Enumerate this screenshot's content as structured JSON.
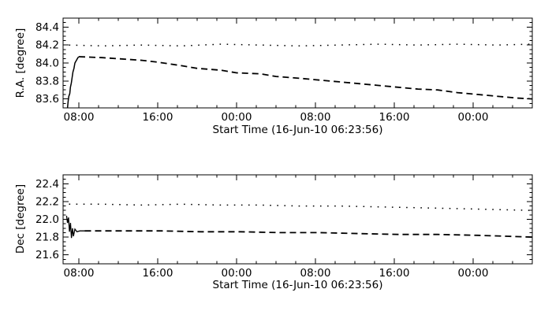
{
  "figure": {
    "background": "#ffffff",
    "foreground": "#000000",
    "description": "Two-panel pointing plot: R.A. and Dec versus time"
  },
  "chart_data": [
    {
      "type": "line",
      "title": "",
      "ylabel": "R.A. [degree]",
      "xlabel": "Start Time (16-Jun-10 06:23:56)",
      "ylim": [
        83.5,
        84.5
      ],
      "ytick_values": [
        83.6,
        83.8,
        84.0,
        84.2,
        84.4
      ],
      "ytick_labels": [
        "83.6",
        "83.8",
        "84.0",
        "84.2",
        "84.4"
      ],
      "y_minor_step": 0.05,
      "xlim_hours": [
        0,
        47.6
      ],
      "xtick_hours": [
        1.601,
        9.601,
        17.601,
        25.601,
        33.601,
        41.601
      ],
      "xtick_labels": [
        "08:00",
        "16:00",
        "00:00",
        "08:00",
        "16:00",
        "00:00"
      ],
      "x_minor_step_hours": 2,
      "grid": false,
      "legend": null,
      "series": [
        {
          "name": "ra-rise-solid",
          "style": "solid",
          "width": 1.5,
          "points": [
            [
              0.45,
              83.5
            ],
            [
              0.52,
              83.58
            ],
            [
              0.58,
              83.63
            ],
            [
              0.68,
              83.66
            ],
            [
              0.74,
              83.73
            ],
            [
              0.84,
              83.78
            ],
            [
              0.92,
              83.84
            ],
            [
              1.0,
              83.9
            ],
            [
              1.1,
              83.94
            ],
            [
              1.2,
              84.0
            ],
            [
              1.35,
              84.03
            ],
            [
              1.5,
              84.06
            ],
            [
              1.6,
              84.07
            ]
          ]
        },
        {
          "name": "ra-measured-dashed",
          "style": "dashed",
          "width": 1.8,
          "points": [
            [
              1.6,
              84.07
            ],
            [
              4.0,
              84.06
            ],
            [
              8.0,
              84.03
            ],
            [
              9.6,
              84.01
            ],
            [
              12.0,
              83.97
            ],
            [
              13.6,
              83.94
            ],
            [
              16.0,
              83.92
            ],
            [
              17.6,
              83.89
            ],
            [
              20.0,
              83.88
            ],
            [
              21.6,
              83.85
            ],
            [
              24.0,
              83.83
            ],
            [
              26.0,
              83.81
            ],
            [
              28.0,
              83.79
            ],
            [
              30.0,
              83.77
            ],
            [
              32.0,
              83.75
            ],
            [
              34.0,
              83.73
            ],
            [
              36.0,
              83.71
            ],
            [
              38.0,
              83.7
            ],
            [
              40.0,
              83.67
            ],
            [
              42.0,
              83.65
            ],
            [
              44.0,
              83.63
            ],
            [
              46.0,
              83.61
            ],
            [
              47.6,
              83.6
            ]
          ]
        },
        {
          "name": "ra-reference-dotted",
          "style": "dotted",
          "width": 1.5,
          "points": [
            [
              0.6,
              84.2
            ],
            [
              4.0,
              84.19
            ],
            [
              8.0,
              84.2
            ],
            [
              12.0,
              84.19
            ],
            [
              16.0,
              84.21
            ],
            [
              20.0,
              84.2
            ],
            [
              24.0,
              84.19
            ],
            [
              28.0,
              84.2
            ],
            [
              32.0,
              84.21
            ],
            [
              36.0,
              84.2
            ],
            [
              40.0,
              84.21
            ],
            [
              44.0,
              84.2
            ],
            [
              47.4,
              84.21
            ]
          ]
        }
      ]
    },
    {
      "type": "line",
      "title": "",
      "ylabel": "Dec [degree]",
      "xlabel": "Start Time (16-Jun-10 06:23:56)",
      "ylim": [
        21.5,
        22.5
      ],
      "ytick_values": [
        21.6,
        21.8,
        22.0,
        22.2,
        22.4
      ],
      "ytick_labels": [
        "21.6",
        "21.8",
        "22.0",
        "22.2",
        "22.4"
      ],
      "y_minor_step": 0.05,
      "xlim_hours": [
        0,
        47.6
      ],
      "xtick_hours": [
        1.601,
        9.601,
        17.601,
        25.601,
        33.601,
        41.601
      ],
      "xtick_labels": [
        "08:00",
        "16:00",
        "00:00",
        "08:00",
        "16:00",
        "00:00"
      ],
      "x_minor_step_hours": 2,
      "grid": false,
      "legend": null,
      "series": [
        {
          "name": "dec-settle-solid",
          "style": "solid",
          "width": 1.3,
          "points": [
            [
              0.35,
              22.04
            ],
            [
              0.45,
              21.96
            ],
            [
              0.55,
              22.02
            ],
            [
              0.65,
              21.86
            ],
            [
              0.75,
              21.96
            ],
            [
              0.85,
              21.79
            ],
            [
              0.95,
              21.9
            ],
            [
              1.05,
              21.81
            ],
            [
              1.2,
              21.89
            ],
            [
              1.4,
              21.86
            ],
            [
              1.7,
              21.87
            ],
            [
              2.2,
              21.87
            ]
          ]
        },
        {
          "name": "dec-measured-dashed",
          "style": "dashed",
          "width": 1.8,
          "points": [
            [
              2.2,
              21.87
            ],
            [
              6.0,
              21.87
            ],
            [
              10.0,
              21.87
            ],
            [
              14.0,
              21.86
            ],
            [
              18.0,
              21.86
            ],
            [
              22.0,
              21.85
            ],
            [
              26.0,
              21.85
            ],
            [
              30.0,
              21.84
            ],
            [
              34.0,
              21.83
            ],
            [
              38.0,
              21.83
            ],
            [
              42.0,
              21.82
            ],
            [
              45.0,
              21.81
            ],
            [
              47.6,
              21.8
            ]
          ]
        },
        {
          "name": "dec-reference-dotted",
          "style": "dotted",
          "width": 1.5,
          "points": [
            [
              0.6,
              22.17
            ],
            [
              4.0,
              22.17
            ],
            [
              8.0,
              22.16
            ],
            [
              12.0,
              22.17
            ],
            [
              16.0,
              22.16
            ],
            [
              20.0,
              22.16
            ],
            [
              24.0,
              22.15
            ],
            [
              28.0,
              22.15
            ],
            [
              32.0,
              22.14
            ],
            [
              36.0,
              22.13
            ],
            [
              40.0,
              22.12
            ],
            [
              44.0,
              22.11
            ],
            [
              47.4,
              22.1
            ]
          ]
        }
      ]
    }
  ]
}
